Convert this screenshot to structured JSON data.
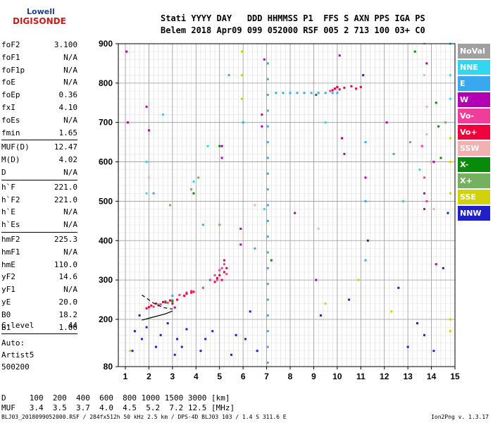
{
  "logo": {
    "line1": "Lowell",
    "line2": "DIGISONDE"
  },
  "header": {
    "line1": "Stati YYYY DAY   DDD HHMMSS P1  FFS S AXN PPS IGA PS",
    "line2": "Belem 2018 Apr09 099 052000 RSF 005 2 713 100 03+ C0"
  },
  "params": [
    [
      {
        "label": "foF2",
        "value": "3.100"
      },
      {
        "label": "foF1",
        "value": "N/A"
      },
      {
        "label": "foF1p",
        "value": "N/A"
      },
      {
        "label": "foE",
        "value": "N/A"
      },
      {
        "label": "foEp",
        "value": "0.36"
      },
      {
        "label": "fxI",
        "value": "4.10"
      },
      {
        "label": "foEs",
        "value": "N/A"
      },
      {
        "label": "fmin",
        "value": "1.65"
      }
    ],
    [
      {
        "label": "MUF(D)",
        "value": "12.47"
      },
      {
        "label": "M(D)",
        "value": "4.02"
      },
      {
        "label": "D",
        "value": "N/A"
      }
    ],
    [
      {
        "label": "h`F",
        "value": "221.0"
      },
      {
        "label": "h`F2",
        "value": "221.0"
      },
      {
        "label": "h`E",
        "value": "N/A"
      },
      {
        "label": "h`Es",
        "value": "N/A"
      }
    ],
    [
      {
        "label": "hmF2",
        "value": "225.3"
      },
      {
        "label": "hmF1",
        "value": "N/A"
      },
      {
        "label": "hmE",
        "value": "110.0"
      },
      {
        "label": "yF2",
        "value": "14.6"
      },
      {
        "label": "yF1",
        "value": "N/A"
      },
      {
        "label": "yE",
        "value": "20.0"
      },
      {
        "label": "B0",
        "value": "18.2"
      },
      {
        "label": "B1",
        "value": "1.06"
      }
    ]
  ],
  "clevel": {
    "label": "C-level",
    "value": "44"
  },
  "auto": {
    "line1": "Auto:",
    "line2": "Artist5",
    "line3": "500200"
  },
  "legend": [
    {
      "label": "NoVal",
      "color": "#a0a0a0"
    },
    {
      "label": "NNE",
      "color": "#31d7f0"
    },
    {
      "label": "E",
      "color": "#3aa8f0"
    },
    {
      "label": "W",
      "color": "#b400b4"
    },
    {
      "label": "Vo-",
      "color": "#f03c9a"
    },
    {
      "label": "Vo+",
      "color": "#f0003c"
    },
    {
      "label": "SSW",
      "color": "#f2b0b0"
    },
    {
      "label": "X-",
      "color": "#0a8a0a"
    },
    {
      "label": "X+",
      "color": "#74b060"
    },
    {
      "label": "SSE",
      "color": "#d2d20a"
    },
    {
      "label": "NNW",
      "color": "#2020c8"
    }
  ],
  "dtable": {
    "line1": "D     100  200  400  600  800 1000 1500 3000 [km]",
    "line2": "MUF   3.4  3.5  3.7  4.0  4.5  5.2  7.2 12.5 [MHz]"
  },
  "footer": "BLJ03_2018099052000.RSF / 284fx512h 50 kHz 2.5 km / DPS-4D BLJ03 103 / 1.4 S 311.6 E",
  "version": "Ion2Png v. 1.3.17",
  "chart_data": {
    "type": "scatter",
    "title": "",
    "xlabel": "",
    "ylabel": "",
    "xlim": [
      0.7,
      15.0
    ],
    "ylim": [
      80,
      900
    ],
    "x_ticks": [
      1,
      2,
      3,
      4,
      5,
      6,
      7,
      8,
      9,
      10,
      11,
      12,
      13,
      14,
      15
    ],
    "y_ticks": [
      80,
      200,
      300,
      400,
      500,
      600,
      700,
      800,
      900
    ],
    "x_tick_labels": [
      "1",
      "2",
      "3",
      "4",
      "5",
      "6",
      "7",
      "8",
      "9",
      "10",
      "11",
      "12",
      "13",
      "14",
      "15"
    ],
    "y_tick_labels": [
      "80",
      "200",
      "300",
      "400",
      "500",
      "600",
      "700",
      "800",
      "900"
    ],
    "grid": true,
    "legend_position": "right",
    "series": [
      {
        "name": "NoVal",
        "x": [],
        "y": []
      },
      {
        "name": "NNE",
        "x": [
          1.9,
          1.9,
          2.6,
          3.9,
          4.5,
          4.6,
          6.9,
          9.5,
          12.8,
          13.5,
          14.8,
          14.8,
          14.8
        ],
        "y": [
          600,
          520,
          720,
          550,
          640,
          300,
          480,
          700,
          500,
          580,
          900,
          820,
          760
        ]
      },
      {
        "name": "E",
        "x": [
          7.05,
          7.05,
          7.05,
          7.05,
          7.05,
          7.05,
          7.05,
          7.05,
          7.05,
          7.05,
          7.05,
          7.05,
          7.05,
          7.05,
          7.05,
          7.05,
          7.05,
          7.05,
          7.05,
          7.05,
          7.4,
          7.7,
          8.0,
          8.3,
          8.6,
          8.9,
          9.2,
          9.5,
          9.8,
          10.0,
          5.4,
          6.0,
          6.5,
          11.2,
          11.2,
          11.2,
          12.4,
          4.3,
          2.2,
          3.0
        ],
        "y": [
          90,
          130,
          170,
          210,
          250,
          290,
          330,
          370,
          410,
          450,
          490,
          530,
          570,
          610,
          650,
          690,
          730,
          770,
          810,
          850,
          775,
          775,
          775,
          775,
          775,
          775,
          775,
          775,
          775,
          775,
          820,
          700,
          380,
          650,
          500,
          350,
          620,
          440,
          520,
          260
        ]
      },
      {
        "name": "W",
        "x": [
          1.05,
          1.1,
          1.9,
          2.0,
          3.1,
          5.1,
          5.1,
          5.9,
          5.9,
          6.8,
          6.8,
          9.1,
          10.1,
          10.2,
          10.3,
          11.2,
          13.7,
          13.7,
          13.8,
          14.1,
          14.2,
          6.9,
          8.2,
          12.1
        ],
        "y": [
          880,
          700,
          740,
          680,
          230,
          640,
          610,
          430,
          390,
          720,
          690,
          300,
          870,
          660,
          620,
          560,
          520,
          480,
          850,
          600,
          340,
          860,
          470,
          700
        ]
      },
      {
        "name": "Vo-",
        "x": [
          2.2,
          2.5,
          2.8,
          3.0,
          3.3,
          3.6,
          3.8,
          4.3,
          4.6,
          4.8,
          4.9,
          5.0,
          5.1,
          5.2,
          5.3,
          13.6,
          13.7,
          13.8,
          9.7,
          10.0
        ],
        "y": [
          232,
          238,
          242,
          248,
          262,
          268,
          272,
          280,
          300,
          312,
          300,
          325,
          330,
          340,
          315,
          640,
          560,
          500,
          780,
          790
        ]
      },
      {
        "name": "Vo+",
        "x": [
          1.9,
          2.0,
          2.1,
          2.3,
          2.4,
          2.6,
          2.7,
          2.9,
          3.0,
          3.2,
          3.5,
          3.6,
          3.8,
          3.9,
          4.8,
          4.9,
          5.0,
          5.1,
          5.2,
          5.2,
          5.3,
          9.8,
          9.9,
          10.0,
          10.1,
          10.3,
          10.6,
          10.8,
          11.0
        ],
        "y": [
          228,
          231,
          235,
          240,
          236,
          244,
          245,
          248,
          240,
          250,
          260,
          265,
          268,
          270,
          295,
          305,
          312,
          300,
          320,
          350,
          330,
          782,
          786,
          790,
          784,
          788,
          792,
          786,
          790
        ]
      },
      {
        "name": "SSW",
        "x": [
          2.0,
          6.5,
          9.2,
          13.7,
          13.7,
          13.8,
          13.8,
          14.0,
          14.1,
          9.0
        ],
        "y": [
          560,
          490,
          430,
          900,
          820,
          740,
          670,
          600,
          480,
          800
        ]
      },
      {
        "name": "X-",
        "x": [
          2.7,
          3.0,
          3.9,
          5.0,
          7.2,
          9.1,
          13.3,
          14.2,
          14.3,
          14.4
        ],
        "y": [
          243,
          246,
          520,
          640,
          350,
          770,
          880,
          750,
          690,
          610
        ]
      },
      {
        "name": "X+",
        "x": [
          2.4,
          2.9,
          3.8,
          4.1,
          5.0,
          13.1,
          14.6
        ],
        "y": [
          238,
          490,
          530,
          560,
          440,
          650,
          700
        ]
      },
      {
        "name": "SSE",
        "x": [
          5.95,
          5.95,
          5.95,
          9.5,
          10.9,
          14.8,
          14.8,
          14.8,
          14.8,
          14.8,
          1.2,
          12.3
        ],
        "y": [
          880,
          820,
          760,
          240,
          300,
          660,
          600,
          520,
          200,
          170,
          120,
          220
        ]
      },
      {
        "name": "NNW",
        "x": [
          1.3,
          1.4,
          1.6,
          1.7,
          1.9,
          2.3,
          2.5,
          2.8,
          3.1,
          3.2,
          3.4,
          3.6,
          4.2,
          4.4,
          4.7,
          5.5,
          5.7,
          6.1,
          6.3,
          6.6,
          9.3,
          10.5,
          11.1,
          11.3,
          12.6,
          13.0,
          13.4,
          13.7,
          14.1,
          14.5,
          14.7
        ],
        "y": [
          120,
          170,
          210,
          150,
          180,
          130,
          160,
          190,
          110,
          150,
          130,
          175,
          120,
          150,
          170,
          110,
          160,
          150,
          220,
          120,
          210,
          250,
          820,
          400,
          280,
          130,
          190,
          160,
          120,
          330,
          470
        ]
      }
    ]
  }
}
